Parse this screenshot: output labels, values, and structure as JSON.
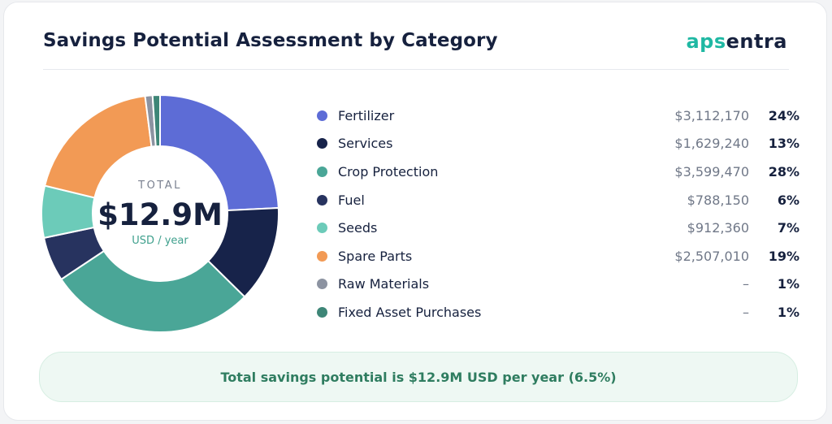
{
  "header": {
    "title": "Savings Potential Assessment by Category",
    "logo_part1": "aps",
    "logo_part2": "entra"
  },
  "center": {
    "label": "TOTAL",
    "value": "$12.9M",
    "unit": "USD / year"
  },
  "chart_data": {
    "type": "pie",
    "title": "Savings Potential Assessment by Category",
    "legend_position": "right",
    "categories": [
      "Fertilizer",
      "Services",
      "Crop Protection",
      "Fuel",
      "Seeds",
      "Spare Parts",
      "Raw Materials",
      "Fixed Asset Purchases"
    ],
    "amounts": [
      "$3,112,170",
      "$1,629,240",
      "$3,599,470",
      "$788,150",
      "$912,360",
      "$2,507,010",
      "–",
      "–"
    ],
    "percent_labels": [
      "24%",
      "13%",
      "28%",
      "6%",
      "7%",
      "19%",
      "1%",
      "1%"
    ],
    "values": [
      24,
      13,
      28,
      6,
      7,
      19,
      1,
      1
    ],
    "colors": [
      "#5d6cd6",
      "#17234a",
      "#4aa697",
      "#27335f",
      "#6ccbb9",
      "#f29a55",
      "#8c93a1",
      "#3e8677"
    ]
  },
  "footer": {
    "summary": "Total savings potential is $12.9M USD per year (6.5%)"
  }
}
